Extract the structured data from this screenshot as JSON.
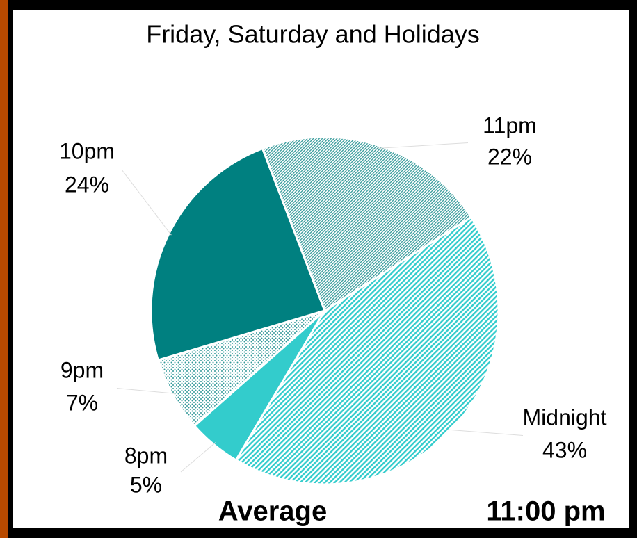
{
  "chart_data": {
    "type": "pie",
    "title": "Friday, Saturday and Holidays",
    "categories": [
      "8pm",
      "9pm",
      "10pm",
      "11pm",
      "Midnight"
    ],
    "values": [
      5,
      7,
      24,
      22,
      43
    ],
    "value_labels": [
      "5%",
      "7%",
      "24%",
      "22%",
      "43%"
    ],
    "colors": [
      "#33cccc",
      "#339999",
      "#008080",
      "#339999",
      "#33cccc"
    ],
    "annotations": [
      "Average",
      "11:00 pm"
    ]
  }
}
